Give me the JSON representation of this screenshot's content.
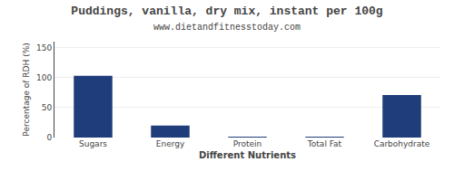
{
  "chart_data": {
    "type": "bar",
    "title": "Puddings, vanilla, dry mix, instant per 100g",
    "subtitle": "www.dietandfitnesstoday.com",
    "xlabel": "Different Nutrients",
    "ylabel": "Percentage of RDH (%)",
    "categories": [
      "Sugars",
      "Energy",
      "Protein",
      "Total Fat",
      "Carbohydrate"
    ],
    "values": [
      103,
      20,
      0.3,
      1.5,
      71
    ],
    "color": "#1f3d7a",
    "ylim": [
      0,
      160
    ],
    "yticks": [
      0,
      50,
      100,
      150
    ],
    "grid": true
  }
}
